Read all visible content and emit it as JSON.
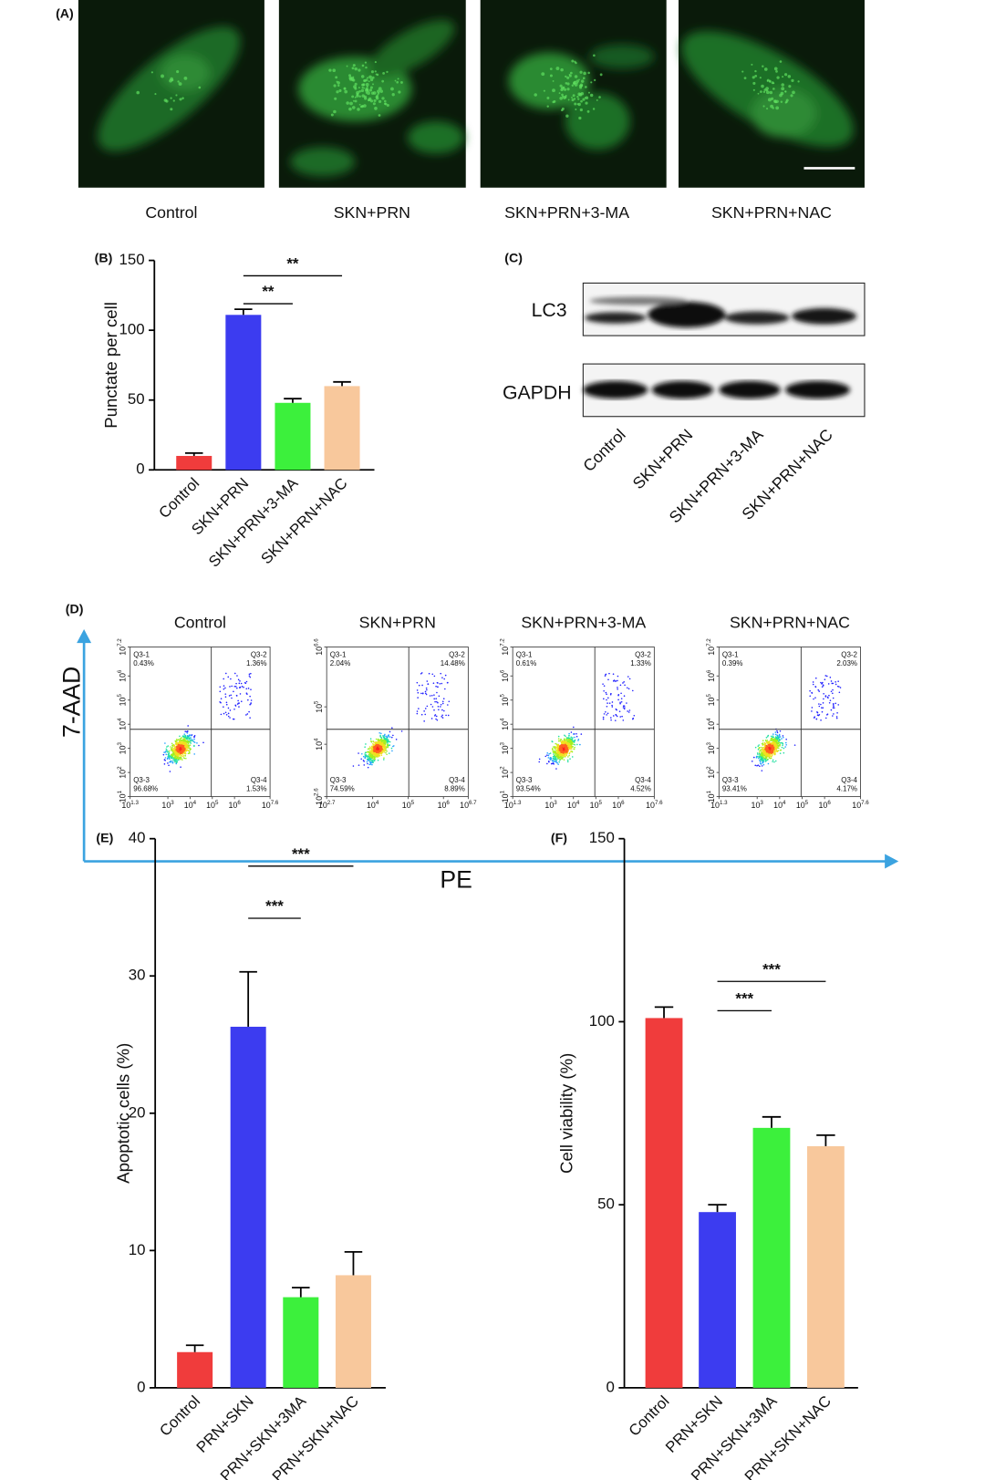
{
  "panel_labels": [
    "(A)",
    "(B)",
    "(C)",
    "(D)",
    "(E)",
    "(F)"
  ],
  "microscopy": {
    "labels": [
      "Control",
      "SKN+PRN",
      "SKN+PRN+3-MA",
      "SKN+PRN+NAC"
    ]
  },
  "western_blot": {
    "bands": [
      "LC3",
      "GAPDH"
    ],
    "lanes": [
      "Control",
      "SKN+PRN",
      "SKN+PRN+3-MA",
      "SKN+PRN+NAC"
    ]
  },
  "flow_cytometry": {
    "y_label": "7-AAD",
    "x_label": "PE",
    "plots": [
      {
        "title": "Control",
        "quadrants": [
          {
            "name": "Q3-1",
            "value": "0.43%"
          },
          {
            "name": "Q3-2",
            "value": "1.36%"
          },
          {
            "name": "Q3-3",
            "value": "96.68%"
          },
          {
            "name": "Q3-4",
            "value": "1.53%"
          }
        ],
        "xticks": [
          {
            "base": "10",
            "power": "1.3"
          },
          {
            "base": "10",
            "power": "3"
          },
          {
            "base": "10",
            "power": "4"
          },
          {
            "base": "10",
            "power": "5"
          },
          {
            "base": "10",
            "power": "6"
          },
          {
            "base": "10",
            "power": "7.6"
          }
        ],
        "yticks": [
          {
            "base": "10",
            "power": "1"
          },
          {
            "base": "10",
            "power": "2"
          },
          {
            "base": "10",
            "power": "3"
          },
          {
            "base": "10",
            "power": "4"
          },
          {
            "base": "10",
            "power": "5"
          },
          {
            "base": "10",
            "power": "6"
          },
          {
            "base": "10",
            "power": "7.2"
          }
        ]
      },
      {
        "title": "SKN+PRN",
        "quadrants": [
          {
            "name": "Q3-1",
            "value": "2.04%"
          },
          {
            "name": "Q3-2",
            "value": "14.48%"
          },
          {
            "name": "Q3-3",
            "value": "74.59%"
          },
          {
            "name": "Q3-4",
            "value": "8.89%"
          }
        ],
        "xticks": [
          {
            "base": "10",
            "power": "2.7"
          },
          {
            "base": "10",
            "power": "4"
          },
          {
            "base": "10",
            "power": "5"
          },
          {
            "base": "10",
            "power": "6"
          },
          {
            "base": "10",
            "power": "6.7"
          }
        ],
        "yticks": [
          {
            "base": "10",
            "power": "2.6"
          },
          {
            "base": "10",
            "power": "4"
          },
          {
            "base": "10",
            "power": "5"
          },
          {
            "base": "10",
            "power": "6.6"
          }
        ]
      },
      {
        "title": "SKN+PRN+3-MA",
        "quadrants": [
          {
            "name": "Q3-1",
            "value": "0.61%"
          },
          {
            "name": "Q3-2",
            "value": "1.33%"
          },
          {
            "name": "Q3-3",
            "value": "93.54%"
          },
          {
            "name": "Q3-4",
            "value": "4.52%"
          }
        ],
        "xticks": [
          {
            "base": "10",
            "power": "1.3"
          },
          {
            "base": "10",
            "power": "3"
          },
          {
            "base": "10",
            "power": "4"
          },
          {
            "base": "10",
            "power": "5"
          },
          {
            "base": "10",
            "power": "6"
          },
          {
            "base": "10",
            "power": "7.6"
          }
        ],
        "yticks": [
          {
            "base": "10",
            "power": "1"
          },
          {
            "base": "10",
            "power": "2"
          },
          {
            "base": "10",
            "power": "3"
          },
          {
            "base": "10",
            "power": "4"
          },
          {
            "base": "10",
            "power": "5"
          },
          {
            "base": "10",
            "power": "6"
          },
          {
            "base": "10",
            "power": "7.2"
          }
        ]
      },
      {
        "title": "SKN+PRN+NAC",
        "quadrants": [
          {
            "name": "Q3-1",
            "value": "0.39%"
          },
          {
            "name": "Q3-2",
            "value": "2.03%"
          },
          {
            "name": "Q3-3",
            "value": "93.41%"
          },
          {
            "name": "Q3-4",
            "value": "4.17%"
          }
        ],
        "xticks": [
          {
            "base": "10",
            "power": "1.3"
          },
          {
            "base": "10",
            "power": "3"
          },
          {
            "base": "10",
            "power": "4"
          },
          {
            "base": "10",
            "power": "5"
          },
          {
            "base": "10",
            "power": "6"
          },
          {
            "base": "10",
            "power": "7.6"
          }
        ],
        "yticks": [
          {
            "base": "10",
            "power": "1"
          },
          {
            "base": "10",
            "power": "2"
          },
          {
            "base": "10",
            "power": "3"
          },
          {
            "base": "10",
            "power": "4"
          },
          {
            "base": "10",
            "power": "5"
          },
          {
            "base": "10",
            "power": "6"
          },
          {
            "base": "10",
            "power": "7.2"
          }
        ]
      }
    ]
  },
  "chart_data": [
    {
      "type": "bar",
      "y_label": "Punctate per cell",
      "categories": [
        "Control",
        "SKN+PRN",
        "SKN+PRN+3-MA",
        "SKN+PRN+NAC"
      ],
      "values": [
        10,
        111,
        48,
        60
      ],
      "errors": [
        2,
        4,
        3,
        3
      ],
      "colors": [
        "#f03c3c",
        "#3c3cf0",
        "#3cf03c",
        "#f8c89c"
      ],
      "ylim": [
        0,
        150
      ],
      "yticks": [
        0,
        50,
        100,
        150
      ],
      "annotations": [
        {
          "text": "**"
        },
        {
          "text": "**"
        }
      ]
    },
    {
      "type": "bar",
      "y_label": "Apoptotic cells (%)",
      "categories": [
        "Control",
        "PRN+SKN",
        "PRN+SKN+3MA",
        "PRN+SKN+NAC"
      ],
      "values": [
        2.6,
        26.3,
        6.6,
        8.2
      ],
      "errors": [
        0.5,
        4.0,
        0.7,
        1.7
      ],
      "colors": [
        "#f03c3c",
        "#3c3cf0",
        "#3cf03c",
        "#f8c89c"
      ],
      "ylim": [
        0,
        40
      ],
      "yticks": [
        0,
        10,
        20,
        30,
        40
      ],
      "annotations": [
        {
          "text": "***"
        },
        {
          "text": "***"
        }
      ]
    },
    {
      "type": "bar",
      "y_label": "Cell viability (%)",
      "categories": [
        "Control",
        "PRN+SKN",
        "PRN+SKN+3MA",
        "PRN+SKN+NAC"
      ],
      "values": [
        101,
        48,
        71,
        66
      ],
      "errors": [
        3,
        2,
        3,
        3
      ],
      "colors": [
        "#f03c3c",
        "#3c3cf0",
        "#3cf03c",
        "#f8c89c"
      ],
      "ylim": [
        0,
        150
      ],
      "yticks": [
        0,
        50,
        100,
        150
      ],
      "annotations": [
        {
          "text": "***"
        },
        {
          "text": "***"
        }
      ]
    }
  ]
}
